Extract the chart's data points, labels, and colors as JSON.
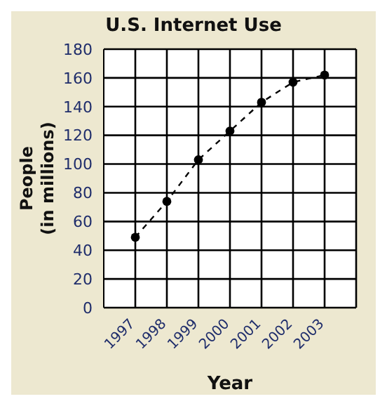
{
  "chart_data": {
    "type": "line",
    "title": "U.S. Internet Use",
    "xlabel": "Year",
    "ylabel": "People\n(in millions)",
    "x": [
      1997,
      1998,
      1999,
      2000,
      2001,
      2002,
      2003
    ],
    "series": [
      {
        "color": "#000000",
        "values": [
          49,
          74,
          103,
          123,
          143,
          157,
          162
        ]
      }
    ],
    "xlim": [
      1996,
      2004
    ],
    "xticks": [
      1997,
      1998,
      1999,
      2000,
      2001,
      2002,
      2003
    ],
    "ylim": [
      0,
      180
    ],
    "yticks": [
      0,
      20,
      40,
      60,
      80,
      100,
      120,
      140,
      160,
      180
    ],
    "grid": true,
    "marker": "circle",
    "line_style": "dashed"
  }
}
